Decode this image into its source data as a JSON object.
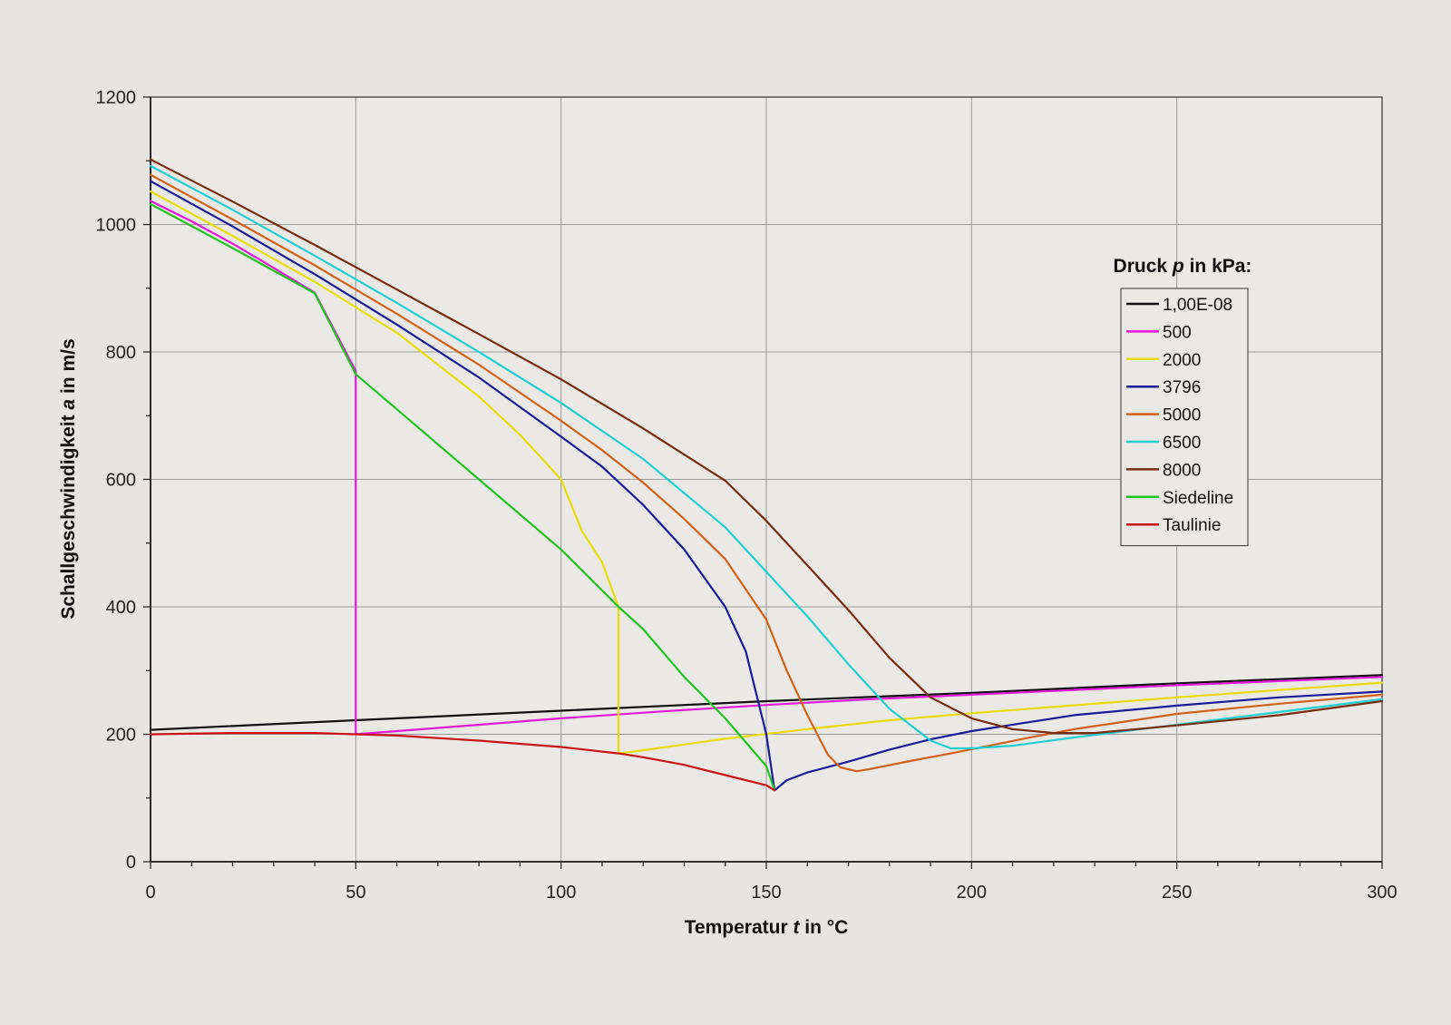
{
  "chart_data": {
    "type": "line",
    "xlabel": {
      "pre": "Temperatur ",
      "var": "t",
      "post": " in °C"
    },
    "ylabel": {
      "pre": "Schallgeschwindigkeit ",
      "var": "a",
      "post": " in m/s"
    },
    "xlim": [
      0,
      300
    ],
    "ylim": [
      0,
      1200
    ],
    "xticks": [
      0,
      50,
      100,
      150,
      200,
      250,
      300
    ],
    "yticks": [
      0,
      200,
      400,
      600,
      800,
      1000,
      1200
    ],
    "grid": true,
    "legend": {
      "title": {
        "pre": "Druck ",
        "var": "p",
        "post": " in kPa:"
      },
      "position": "right"
    },
    "series": [
      {
        "name": "1,00E-08",
        "color": "#111111",
        "points": [
          [
            0,
            207
          ],
          [
            50,
            222
          ],
          [
            100,
            237
          ],
          [
            150,
            252
          ],
          [
            200,
            265
          ],
          [
            250,
            280
          ],
          [
            300,
            293
          ]
        ]
      },
      {
        "name": "500",
        "color": "#e21ad8",
        "points": [
          [
            0,
            1037
          ],
          [
            10,
            1005
          ],
          [
            20,
            970
          ],
          [
            30,
            932
          ],
          [
            40,
            893
          ],
          [
            50,
            770
          ],
          [
            50,
            200
          ],
          [
            60,
            205
          ],
          [
            80,
            215
          ],
          [
            100,
            225
          ],
          [
            125,
            236
          ],
          [
            150,
            246
          ],
          [
            175,
            255
          ],
          [
            200,
            262
          ],
          [
            250,
            277
          ],
          [
            300,
            290
          ]
        ]
      },
      {
        "name": "2000",
        "color": "#e8dc0a",
        "points": [
          [
            0,
            1052
          ],
          [
            20,
            982
          ],
          [
            40,
            910
          ],
          [
            60,
            830
          ],
          [
            80,
            730
          ],
          [
            90,
            670
          ],
          [
            100,
            600
          ],
          [
            105,
            520
          ],
          [
            110,
            470
          ],
          [
            114,
            400
          ],
          [
            114,
            170
          ],
          [
            120,
            175
          ],
          [
            140,
            193
          ],
          [
            160,
            208
          ],
          [
            180,
            222
          ],
          [
            200,
            233
          ],
          [
            250,
            258
          ],
          [
            300,
            281
          ]
        ]
      },
      {
        "name": "3796",
        "color": "#1b1c99",
        "points": [
          [
            0,
            1068
          ],
          [
            20,
            997
          ],
          [
            40,
            922
          ],
          [
            60,
            843
          ],
          [
            80,
            760
          ],
          [
            100,
            667
          ],
          [
            110,
            620
          ],
          [
            120,
            560
          ],
          [
            130,
            490
          ],
          [
            140,
            400
          ],
          [
            145,
            330
          ],
          [
            150,
            200
          ],
          [
            152,
            112
          ],
          [
            155,
            128
          ],
          [
            160,
            140
          ],
          [
            170,
            157
          ],
          [
            180,
            176
          ],
          [
            190,
            192
          ],
          [
            200,
            205
          ],
          [
            225,
            230
          ],
          [
            250,
            245
          ],
          [
            275,
            258
          ],
          [
            300,
            267
          ]
        ]
      },
      {
        "name": "5000",
        "color": "#d2611a",
        "points": [
          [
            0,
            1078
          ],
          [
            20,
            1008
          ],
          [
            40,
            936
          ],
          [
            60,
            860
          ],
          [
            80,
            780
          ],
          [
            100,
            692
          ],
          [
            110,
            646
          ],
          [
            120,
            595
          ],
          [
            130,
            538
          ],
          [
            140,
            475
          ],
          [
            150,
            380
          ],
          [
            155,
            300
          ],
          [
            160,
            230
          ],
          [
            165,
            168
          ],
          [
            168,
            148
          ],
          [
            172,
            142
          ],
          [
            175,
            145
          ],
          [
            185,
            158
          ],
          [
            195,
            170
          ],
          [
            205,
            183
          ],
          [
            215,
            196
          ],
          [
            225,
            208
          ],
          [
            250,
            232
          ],
          [
            275,
            248
          ],
          [
            300,
            262
          ]
        ]
      },
      {
        "name": "6500",
        "color": "#22cfd3",
        "points": [
          [
            0,
            1092
          ],
          [
            20,
            1023
          ],
          [
            40,
            951
          ],
          [
            60,
            877
          ],
          [
            80,
            800
          ],
          [
            100,
            720
          ],
          [
            120,
            632
          ],
          [
            140,
            525
          ],
          [
            150,
            455
          ],
          [
            160,
            385
          ],
          [
            170,
            310
          ],
          [
            180,
            240
          ],
          [
            190,
            190
          ],
          [
            195,
            178
          ],
          [
            200,
            178
          ],
          [
            210,
            182
          ],
          [
            225,
            195
          ],
          [
            250,
            215
          ],
          [
            275,
            235
          ],
          [
            300,
            255
          ]
        ]
      },
      {
        "name": "8000",
        "color": "#7a2c0e",
        "points": [
          [
            0,
            1102
          ],
          [
            20,
            1036
          ],
          [
            40,
            968
          ],
          [
            60,
            898
          ],
          [
            80,
            828
          ],
          [
            100,
            757
          ],
          [
            120,
            680
          ],
          [
            140,
            598
          ],
          [
            150,
            535
          ],
          [
            160,
            465
          ],
          [
            170,
            395
          ],
          [
            180,
            320
          ],
          [
            190,
            258
          ],
          [
            200,
            225
          ],
          [
            210,
            208
          ],
          [
            220,
            202
          ],
          [
            230,
            202
          ],
          [
            250,
            214
          ],
          [
            275,
            230
          ],
          [
            300,
            252
          ]
        ]
      },
      {
        "name": "Siedeline",
        "color": "#22c422",
        "points": [
          [
            0,
            1032
          ],
          [
            20,
            963
          ],
          [
            40,
            892
          ],
          [
            50,
            765
          ],
          [
            60,
            710
          ],
          [
            80,
            600
          ],
          [
            100,
            490
          ],
          [
            114,
            400
          ],
          [
            120,
            365
          ],
          [
            130,
            290
          ],
          [
            140,
            225
          ],
          [
            150,
            150
          ],
          [
            152,
            112
          ]
        ]
      },
      {
        "name": "Taulinie",
        "color": "#c81414",
        "points": [
          [
            0,
            200
          ],
          [
            20,
            202
          ],
          [
            40,
            202
          ],
          [
            50,
            200
          ],
          [
            60,
            198
          ],
          [
            80,
            190
          ],
          [
            100,
            180
          ],
          [
            114,
            170
          ],
          [
            120,
            164
          ],
          [
            130,
            152
          ],
          [
            140,
            136
          ],
          [
            150,
            120
          ],
          [
            152,
            112
          ]
        ]
      }
    ]
  }
}
